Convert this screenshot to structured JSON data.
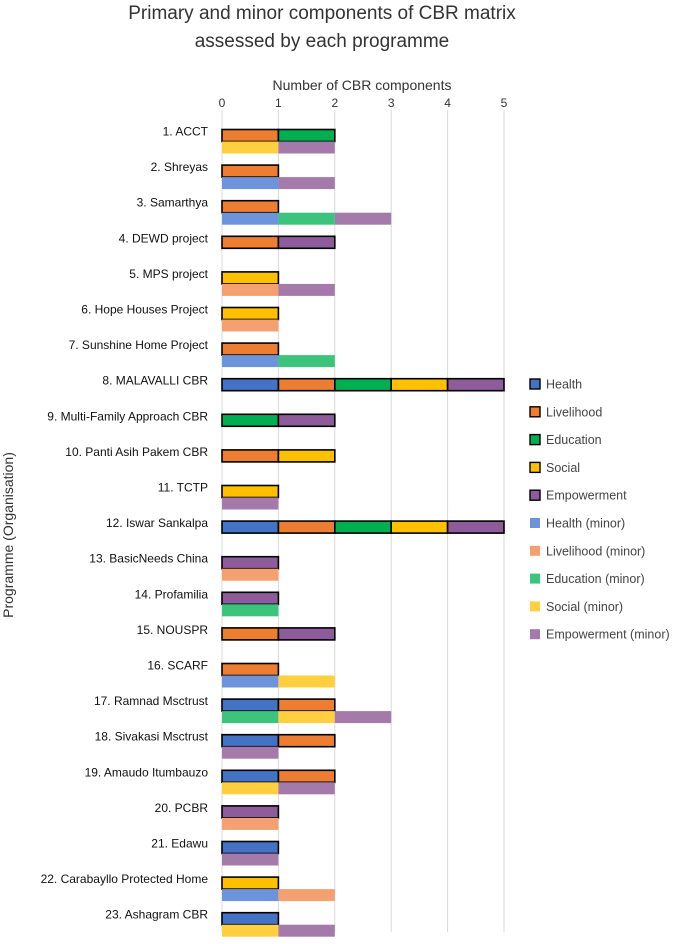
{
  "chart_data": {
    "type": "bar",
    "orientation": "horizontal",
    "stacked": true,
    "title": "Primary and minor components of CBR matrix assessed by each programme",
    "title_lines": [
      "Primary and minor components of CBR matrix",
      "assessed by each programme"
    ],
    "xlabel": "Number of CBR components",
    "ylabel": "Programme (Organisation)",
    "xlim": [
      0,
      5
    ],
    "xticks": [
      "0",
      "1",
      "2",
      "3",
      "4",
      "5"
    ],
    "grid": true,
    "legend_position": "right",
    "categories": [
      "1. ACCT",
      "2. Shreyas",
      "3. Samarthya",
      "4. DEWD project",
      "5. MPS project",
      "6. Hope Houses Project",
      "7. Sunshine Home Project",
      "8. MALAVALLI CBR",
      "9. Multi-Family Approach  CBR",
      "10. Panti Asih Pakem CBR",
      "11. TCTP",
      "12. Iswar Sankalpa",
      "13. BasicNeeds China",
      "14. Profamilia",
      "15. NOUSPR",
      "16. SCARF",
      "17. Ramnad Msctrust",
      "18. Sivakasi Msctrust",
      "19. Amaudo Itumbauzo ",
      "20. PCBR",
      "21. Edawu",
      "22. Carabayllo Protected Home",
      "23. Ashagram CBR"
    ],
    "primary_series": [
      {
        "name": "Health",
        "color": "#4472C4",
        "values": [
          0,
          0,
          0,
          0,
          0,
          0,
          0,
          1,
          0,
          0,
          0,
          1,
          0,
          0,
          0,
          0,
          1,
          1,
          1,
          0,
          1,
          0,
          1
        ]
      },
      {
        "name": "Livelihood",
        "color": "#ED7D31",
        "values": [
          1,
          1,
          1,
          1,
          0,
          0,
          1,
          1,
          0,
          1,
          0,
          1,
          0,
          0,
          1,
          1,
          1,
          1,
          1,
          0,
          0,
          0,
          0
        ]
      },
      {
        "name": "Education",
        "color": "#00B050",
        "values": [
          1,
          0,
          0,
          0,
          0,
          0,
          0,
          1,
          1,
          0,
          0,
          1,
          0,
          0,
          0,
          0,
          0,
          0,
          0,
          0,
          0,
          0,
          0
        ]
      },
      {
        "name": "Social",
        "color": "#FFC000",
        "values": [
          0,
          0,
          0,
          0,
          1,
          1,
          0,
          1,
          0,
          1,
          1,
          1,
          0,
          0,
          0,
          0,
          0,
          0,
          0,
          0,
          0,
          1,
          0
        ]
      },
      {
        "name": "Empowerment",
        "color": "#8E5C9B",
        "values": [
          0,
          0,
          0,
          1,
          0,
          0,
          0,
          1,
          1,
          0,
          0,
          1,
          1,
          1,
          1,
          0,
          0,
          0,
          0,
          1,
          0,
          0,
          0
        ]
      }
    ],
    "minor_series": [
      {
        "name": "Health (minor)",
        "color": "#6D94DA",
        "values": [
          0,
          1,
          1,
          0,
          0,
          0,
          1,
          0,
          0,
          0,
          0,
          0,
          0,
          0,
          0,
          1,
          0,
          0,
          0,
          0,
          0,
          1,
          0
        ]
      },
      {
        "name": "Livelihood (minor)",
        "color": "#F4A070",
        "values": [
          0,
          0,
          0,
          0,
          1,
          1,
          0,
          0,
          0,
          0,
          0,
          0,
          1,
          0,
          0,
          0,
          0,
          0,
          0,
          1,
          0,
          1,
          0
        ]
      },
      {
        "name": "Education (minor)",
        "color": "#3CC47C",
        "values": [
          0,
          0,
          1,
          0,
          0,
          0,
          1,
          0,
          0,
          0,
          0,
          0,
          0,
          1,
          0,
          0,
          1,
          0,
          0,
          0,
          0,
          0,
          0
        ]
      },
      {
        "name": "Social (minor)",
        "color": "#FFCF40",
        "values": [
          1,
          0,
          0,
          0,
          0,
          0,
          0,
          0,
          0,
          0,
          0,
          0,
          0,
          0,
          0,
          1,
          1,
          0,
          1,
          0,
          0,
          0,
          1
        ]
      },
      {
        "name": "Empowerment (minor)",
        "color": "#A47AAB",
        "values": [
          1,
          1,
          1,
          0,
          1,
          0,
          0,
          0,
          0,
          0,
          1,
          0,
          0,
          0,
          0,
          0,
          1,
          1,
          1,
          0,
          1,
          0,
          1
        ]
      }
    ]
  }
}
